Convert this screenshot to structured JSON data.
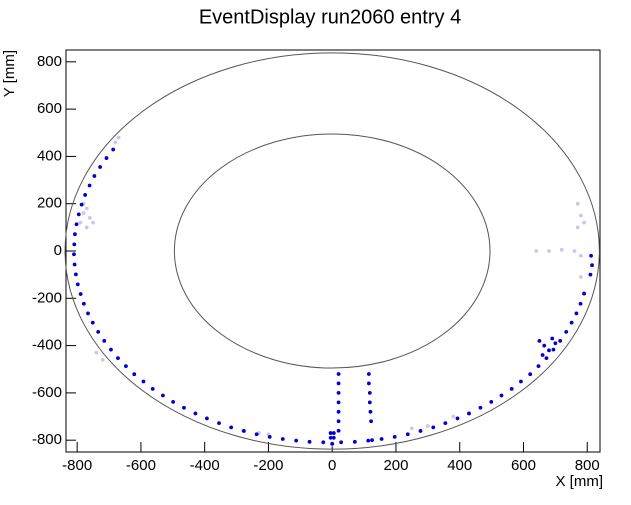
{
  "chart_data": {
    "type": "scatter",
    "title": "EventDisplay run2060 entry 4",
    "x_label": "X [mm]",
    "y_label": "Y [mm]",
    "xlim": [
      -835,
      840
    ],
    "ylim": [
      -850,
      850
    ],
    "xticks": [
      -800,
      -600,
      -400,
      -200,
      0,
      200,
      400,
      600,
      800
    ],
    "yticks": [
      -800,
      -600,
      -400,
      -200,
      0,
      200,
      400,
      600,
      800
    ],
    "circles": [
      {
        "x": 0,
        "y": 0,
        "r": 838,
        "color": "#555555"
      },
      {
        "x": 0,
        "y": 0,
        "r": 495,
        "color": "#555555"
      }
    ],
    "series": [
      {
        "color": "#c8c8f0",
        "x": [
          -680,
          -670,
          -770,
          -780,
          -760,
          -790,
          -770,
          -750,
          -780,
          770,
          780,
          790,
          770,
          640,
          680,
          720,
          760,
          780,
          780,
          -280,
          -230,
          -200,
          250,
          300,
          380,
          -740,
          -720,
          0
        ],
        "y": [
          460,
          480,
          180,
          160,
          140,
          120,
          100,
          120,
          200,
          200,
          150,
          120,
          100,
          0,
          0,
          5,
          0,
          -20,
          -110,
          -760,
          -770,
          -775,
          -750,
          -740,
          -700,
          -430,
          -460,
          -820
        ]
      },
      {
        "color": "#0000d0",
        "x": [
          -687,
          -708,
          -728,
          -746,
          -761,
          -775,
          -786,
          -795,
          -802,
          -807,
          -809,
          -810,
          -808,
          -804,
          -798,
          -789,
          -779,
          -766,
          -751,
          -734,
          -715,
          -694,
          -672,
          -647,
          -621,
          -592,
          -563,
          -531,
          -499,
          -465,
          -429,
          -393,
          -355,
          -317,
          -277,
          -237,
          -196,
          -155,
          -113,
          -71,
          -28,
          0,
          28,
          71,
          113,
          155,
          196,
          237,
          277,
          317,
          355,
          393,
          429,
          465,
          499,
          531,
          563,
          592,
          621,
          647,
          672,
          694,
          715,
          734,
          751,
          766,
          779,
          812,
          815,
          810,
          790,
          20,
          20,
          20,
          20,
          20,
          20,
          20,
          115,
          115,
          118,
          118,
          120,
          122,
          125,
          -5,
          -5,
          5,
          5,
          650,
          665,
          680,
          690,
          700,
          660
        ],
        "y": [
          429,
          393,
          355,
          317,
          277,
          237,
          196,
          155,
          113,
          71,
          28,
          -14,
          -57,
          -99,
          -141,
          -182,
          -223,
          -264,
          -303,
          -342,
          -380,
          -417,
          -453,
          -487,
          -521,
          -552,
          -583,
          -611,
          -638,
          -663,
          -687,
          -708,
          -728,
          -746,
          -761,
          -775,
          -786,
          -795,
          -802,
          -807,
          -809,
          -815,
          -809,
          -807,
          -802,
          -795,
          -786,
          -775,
          -761,
          -746,
          -728,
          -708,
          -687,
          -663,
          -638,
          -611,
          -583,
          -552,
          -521,
          -487,
          -453,
          -417,
          -380,
          -342,
          -303,
          -264,
          -223,
          -20,
          -60,
          -100,
          -180,
          -520,
          -560,
          -600,
          -640,
          -680,
          -720,
          -760,
          -520,
          -560,
          -600,
          -640,
          -680,
          -720,
          -800,
          -770,
          -790,
          -770,
          -790,
          -380,
          -400,
          -420,
          -370,
          -390,
          -440
        ]
      }
    ]
  }
}
